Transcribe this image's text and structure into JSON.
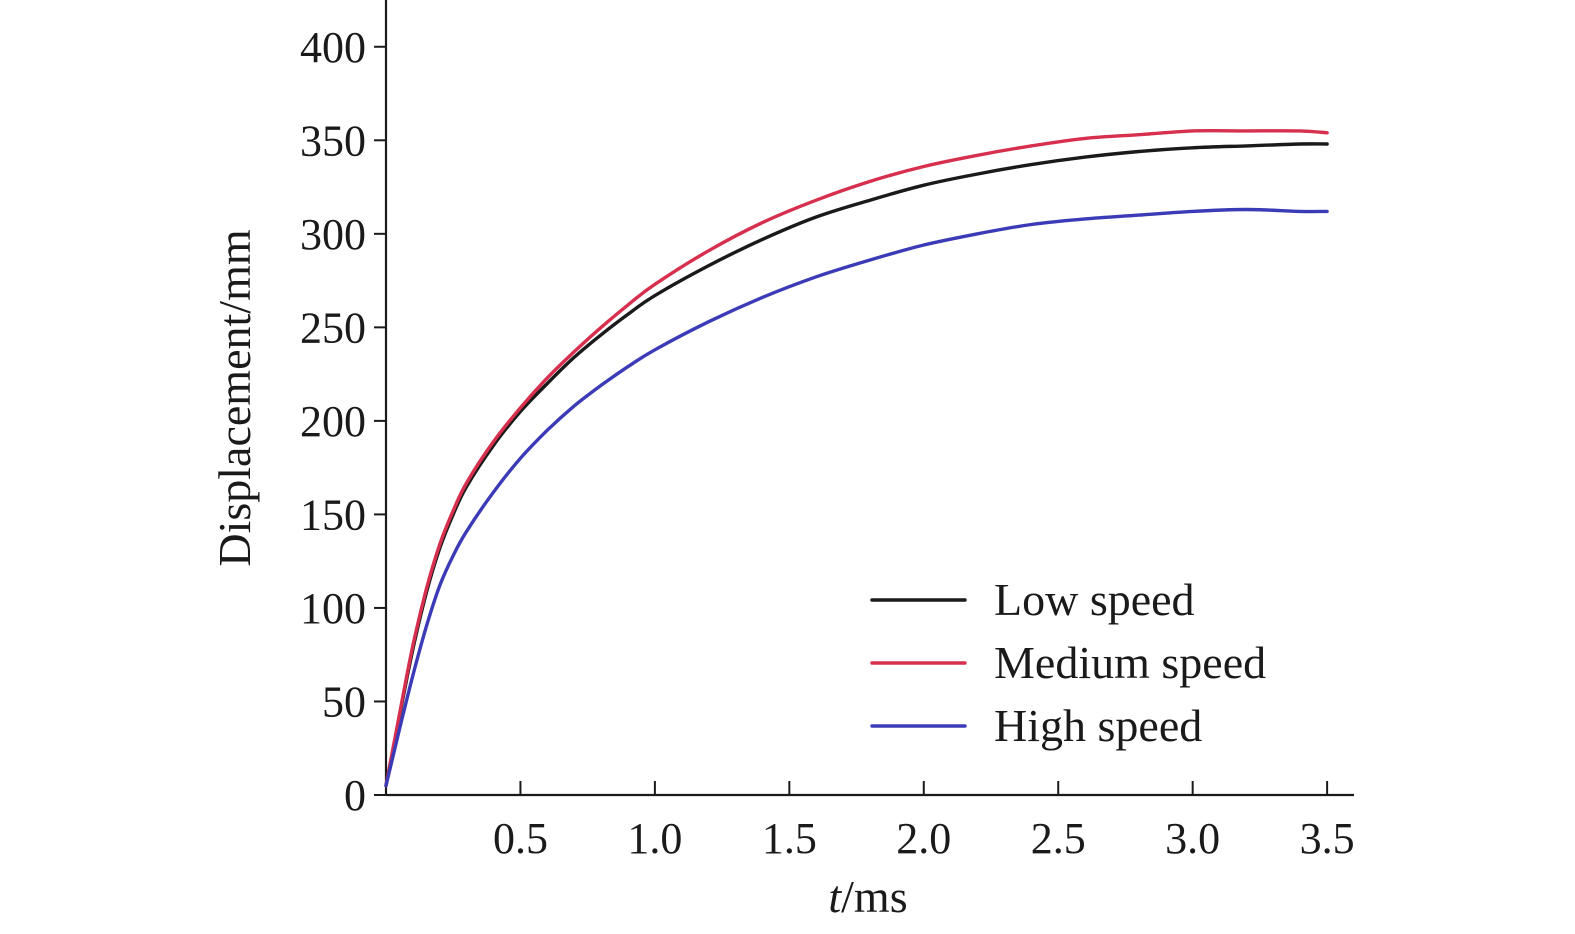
{
  "chart_data": {
    "type": "line",
    "title": "",
    "xlabel_italic": "t",
    "xlabel_unit": "/ms",
    "ylabel": "Displacement/mm",
    "xlim": [
      0,
      3.6
    ],
    "ylim": [
      0,
      425
    ],
    "grid": false,
    "legend_position": "bottom-right",
    "x_ticks": [
      0.5,
      1.0,
      1.5,
      2.0,
      2.5,
      3.0,
      3.5
    ],
    "x_tick_labels": [
      "0.5",
      "1.0",
      "1.5",
      "2.0",
      "2.5",
      "3.0",
      "3.5"
    ],
    "y_ticks": [
      0,
      50,
      100,
      150,
      200,
      250,
      300,
      350,
      400
    ],
    "y_tick_labels": [
      "0",
      "50",
      "100",
      "150",
      "200",
      "250",
      "300",
      "350",
      "400"
    ],
    "x": [
      0,
      0.05,
      0.1,
      0.15,
      0.2,
      0.25,
      0.3,
      0.4,
      0.5,
      0.6,
      0.7,
      0.8,
      0.9,
      1.0,
      1.2,
      1.4,
      1.6,
      1.8,
      2.0,
      2.2,
      2.4,
      2.6,
      2.8,
      3.0,
      3.2,
      3.4,
      3.5
    ],
    "series": [
      {
        "name": "Low speed",
        "color": "#1a1a1a",
        "values": [
          5,
          42,
          78,
          108,
          132,
          150,
          165,
          187,
          205,
          220,
          234,
          246,
          257,
          267,
          283,
          297,
          309,
          318,
          326,
          332,
          337,
          341,
          344,
          346,
          347,
          348,
          348
        ]
      },
      {
        "name": "Medium speed",
        "color": "#d6304e",
        "values": [
          5,
          43,
          80,
          110,
          134,
          152,
          167,
          189,
          207,
          223,
          237,
          250,
          262,
          273,
          291,
          306,
          318,
          328,
          336,
          342,
          347,
          351,
          353,
          355,
          355,
          355,
          354
        ]
      },
      {
        "name": "High speed",
        "color": "#3b3bb8",
        "values": [
          5,
          35,
          64,
          90,
          112,
          128,
          141,
          162,
          180,
          195,
          208,
          219,
          229,
          238,
          253,
          266,
          277,
          286,
          294,
          300,
          305,
          308,
          310,
          312,
          313,
          312,
          312
        ]
      }
    ]
  }
}
